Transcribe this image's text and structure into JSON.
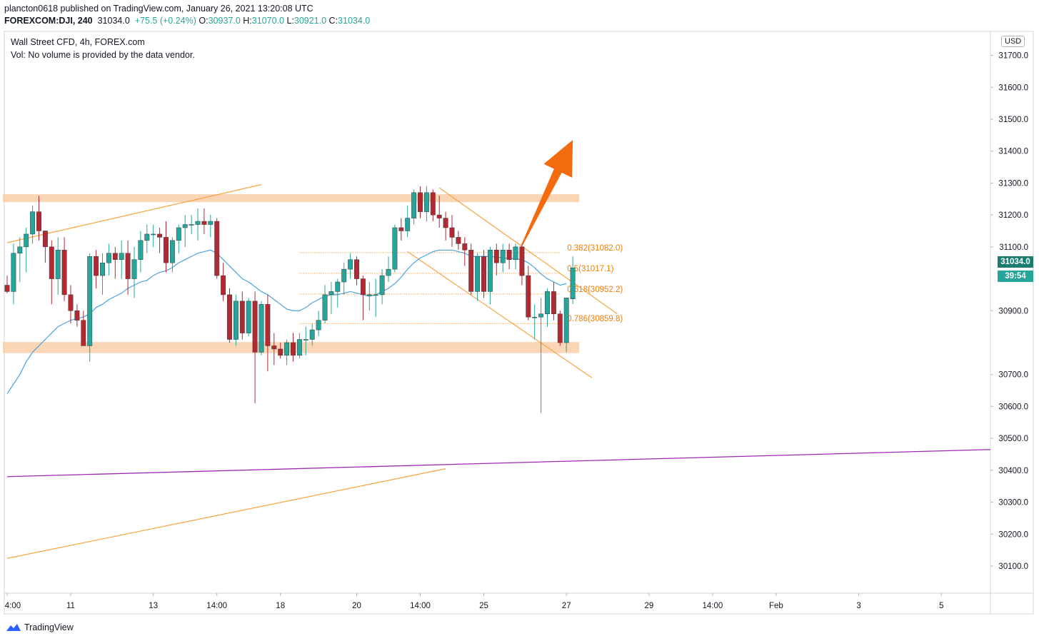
{
  "header": {
    "line1": "plancton0618 published on TradingView.com, January 26, 2021 13:20:08 UTC",
    "symbol": "FOREXCOM:DJI, 240",
    "last": "31034.0",
    "change": "+75.5 (+0.24%)",
    "o_key": "O:",
    "o_val": "30937.0",
    "h_key": "H:",
    "h_val": "31070.0",
    "l_key": "L:",
    "l_val": "30921.0",
    "c_key": "C:",
    "c_val": "31034.0"
  },
  "overlay": {
    "title": "Wall Street CFD, 4h, FOREX.com",
    "volume_note": "Vol: No volume is provided by the data vendor."
  },
  "price_axis": {
    "currency_badge": "USD",
    "current_price_label": "31034.0",
    "countdown_label": "39:54"
  },
  "footer": {
    "brand": "TradingView"
  },
  "colors": {
    "up": "#26a69a",
    "down": "#b22833",
    "ma": "#4aa3df",
    "fib": "#f57c00",
    "trend": "#f7a440",
    "zone": "#f9c89d",
    "purple": "#9c27b0",
    "arrow": "#f26b0f"
  },
  "chart_data": {
    "type": "candlestick",
    "title": "Wall Street CFD, 4h, FOREX.com",
    "ylim": [
      30015,
      31775
    ],
    "y_ticks": [
      30100,
      30200,
      30300,
      30400,
      30500,
      30600,
      30700,
      30800,
      30900,
      31000,
      31100,
      31200,
      31300,
      31400,
      31500,
      31600,
      31700
    ],
    "y_tick_labels": [
      "30100.0",
      "30200.0",
      "30300.0",
      "30400.0",
      "30500.0",
      "30600.0",
      "30700.0",
      "",
      "30900.0",
      "",
      "31100.0",
      "31200.0",
      "31300.0",
      "31400.0",
      "31500.0",
      "31600.0",
      "31700.0"
    ],
    "x_tick_labels": [
      {
        "i": 0,
        "label": "4:00"
      },
      {
        "i": 10,
        "label": "11"
      },
      {
        "i": 23,
        "label": "13"
      },
      {
        "i": 33,
        "label": "14:00"
      },
      {
        "i": 43,
        "label": "18"
      },
      {
        "i": 55,
        "label": "20"
      },
      {
        "i": 65,
        "label": "14:00"
      },
      {
        "i": 75,
        "label": "25"
      },
      {
        "i": 88,
        "label": "27"
      },
      {
        "i": 101,
        "label": "29"
      },
      {
        "i": 111,
        "label": "14:00"
      },
      {
        "i": 121,
        "label": "Feb"
      },
      {
        "i": 134,
        "label": "3"
      },
      {
        "i": 147,
        "label": "5"
      }
    ],
    "candles": [
      [
        30980,
        31010,
        30955,
        30960
      ],
      [
        30960,
        31110,
        30920,
        31080
      ],
      [
        31080,
        31130,
        30990,
        31100
      ],
      [
        31100,
        31160,
        31020,
        31140
      ],
      [
        31140,
        31230,
        31110,
        31210
      ],
      [
        31210,
        31260,
        31120,
        31150
      ],
      [
        31150,
        31150,
        31050,
        31100
      ],
      [
        31100,
        31120,
        30920,
        31000
      ],
      [
        31000,
        31130,
        30950,
        31090
      ],
      [
        31090,
        31130,
        30930,
        30950
      ],
      [
        30950,
        30980,
        30860,
        30900
      ],
      [
        30900,
        30920,
        30850,
        30870
      ],
      [
        30870,
        30900,
        30790,
        30790
      ],
      [
        30790,
        31080,
        30740,
        31070
      ],
      [
        31070,
        31090,
        30970,
        31010
      ],
      [
        31010,
        31080,
        30950,
        31050
      ],
      [
        31050,
        31110,
        31010,
        31080
      ],
      [
        31080,
        31100,
        31000,
        31060
      ],
      [
        31060,
        31120,
        31000,
        31080
      ],
      [
        31080,
        31120,
        30950,
        31000
      ],
      [
        31000,
        31100,
        30940,
        31060
      ],
      [
        31060,
        31150,
        31020,
        31120
      ],
      [
        31120,
        31170,
        31080,
        31140
      ],
      [
        31140,
        31170,
        31100,
        31140
      ],
      [
        31140,
        31160,
        31080,
        31130
      ],
      [
        31130,
        31180,
        31020,
        31050
      ],
      [
        31050,
        31130,
        31020,
        31120
      ],
      [
        31120,
        31170,
        31080,
        31160
      ],
      [
        31160,
        31200,
        31100,
        31170
      ],
      [
        31170,
        31200,
        31140,
        31170
      ],
      [
        31170,
        31220,
        31120,
        31180
      ],
      [
        31180,
        31220,
        31140,
        31170
      ],
      [
        31170,
        31200,
        31130,
        31180
      ],
      [
        31180,
        31190,
        31000,
        31010
      ],
      [
        31010,
        31050,
        30930,
        30950
      ],
      [
        30950,
        30970,
        30800,
        30810
      ],
      [
        30810,
        30950,
        30790,
        30930
      ],
      [
        30930,
        30960,
        30810,
        30830
      ],
      [
        30830,
        30940,
        30820,
        30930
      ],
      [
        30930,
        30960,
        30610,
        30770
      ],
      [
        30770,
        30930,
        30760,
        30920
      ],
      [
        30920,
        30950,
        30710,
        30790
      ],
      [
        30790,
        30830,
        30730,
        30780
      ],
      [
        30780,
        30800,
        30750,
        30760
      ],
      [
        30760,
        30810,
        30730,
        30800
      ],
      [
        30800,
        30830,
        30740,
        30760
      ],
      [
        30760,
        30830,
        30750,
        30810
      ],
      [
        30810,
        30850,
        30760,
        30810
      ],
      [
        30810,
        30860,
        30790,
        30840
      ],
      [
        30840,
        30900,
        30820,
        30870
      ],
      [
        30870,
        30980,
        30860,
        30950
      ],
      [
        30950,
        30990,
        30890,
        30960
      ],
      [
        30960,
        31000,
        30910,
        30990
      ],
      [
        30990,
        31050,
        30950,
        31030
      ],
      [
        31030,
        31080,
        31000,
        31060
      ],
      [
        31060,
        31070,
        30980,
        31000
      ],
      [
        31000,
        31010,
        30870,
        30950
      ],
      [
        30950,
        30990,
        30900,
        30950
      ],
      [
        30950,
        31000,
        30880,
        30950
      ],
      [
        30950,
        31030,
        30920,
        31010
      ],
      [
        31010,
        31070,
        30990,
        31030
      ],
      [
        31030,
        31170,
        31020,
        31160
      ],
      [
        31160,
        31190,
        31120,
        31150
      ],
      [
        31150,
        31230,
        31130,
        31190
      ],
      [
        31190,
        31280,
        31170,
        31270
      ],
      [
        31270,
        31290,
        31190,
        31210
      ],
      [
        31210,
        31290,
        31180,
        31270
      ],
      [
        31270,
        31280,
        31180,
        31200
      ],
      [
        31200,
        31260,
        31160,
        31190
      ],
      [
        31190,
        31210,
        31120,
        31160
      ],
      [
        31160,
        31200,
        31100,
        31130
      ],
      [
        31130,
        31150,
        31090,
        31110
      ],
      [
        31110,
        31130,
        31040,
        31090
      ],
      [
        31090,
        31110,
        30950,
        30960
      ],
      [
        30960,
        31080,
        30930,
        31070
      ],
      [
        31070,
        31090,
        30940,
        30960
      ],
      [
        30960,
        31100,
        30920,
        31090
      ],
      [
        31090,
        31110,
        31010,
        31050
      ],
      [
        31050,
        31110,
        31020,
        31090
      ],
      [
        31090,
        31110,
        31030,
        31060
      ],
      [
        31060,
        31110,
        31030,
        31100
      ],
      [
        31100,
        31110,
        30980,
        31010
      ],
      [
        31010,
        31040,
        30870,
        30880
      ],
      [
        30880,
        30920,
        30810,
        30880
      ],
      [
        30880,
        30940,
        30580,
        30890
      ],
      [
        30890,
        30970,
        30850,
        30960
      ],
      [
        30960,
        30990,
        30870,
        30890
      ],
      [
        30890,
        30900,
        30790,
        30800
      ],
      [
        30800,
        30940,
        30770,
        30940
      ],
      [
        30937,
        31070,
        30921,
        31034
      ]
    ],
    "moving_average": [
      30640,
      30670,
      30700,
      30740,
      30770,
      30790,
      30810,
      30830,
      30850,
      30860,
      30870,
      30875,
      30880,
      30890,
      30910,
      30920,
      30935,
      30945,
      30955,
      30970,
      30980,
      30990,
      30995,
      31010,
      31020,
      31025,
      31035,
      31050,
      31060,
      31070,
      31080,
      31085,
      31090,
      31080,
      31060,
      31040,
      31020,
      31000,
      30990,
      30975,
      30960,
      30950,
      30935,
      30920,
      30905,
      30900,
      30900,
      30910,
      30925,
      30935,
      30945,
      30950,
      30950,
      30955,
      30960,
      30955,
      30950,
      30945,
      30950,
      30960,
      30970,
      30985,
      31005,
      31030,
      31050,
      31065,
      31075,
      31085,
      31090,
      31090,
      31090,
      31085,
      31080,
      31070,
      31070,
      31070,
      31070,
      31068,
      31066,
      31063,
      31063,
      31060,
      31050,
      31035,
      31015,
      31000,
      30990,
      30980,
      30985
    ],
    "fib_levels": [
      {
        "ratio": "0.382",
        "price": 31082.0,
        "label": "0.382(31082.0)"
      },
      {
        "ratio": "0.5",
        "price": 31017.1,
        "label": "0.5(31017.1)"
      },
      {
        "ratio": "0.618",
        "price": 30952.2,
        "label": "0.618(30952.2)"
      },
      {
        "ratio": "0.786",
        "price": 30859.8,
        "label": "0.786(30859.8)"
      }
    ],
    "zones": [
      {
        "from_i": 0,
        "to_i": 90,
        "low": 31240,
        "high": 31265
      },
      {
        "from_i": 0,
        "to_i": 90,
        "low": 30767,
        "high": 30802
      }
    ],
    "lines": [
      {
        "name": "upper-trend",
        "p1": [
          0,
          31113
        ],
        "p2": [
          40,
          31295
        ]
      },
      {
        "name": "lower-trend",
        "p1": [
          0,
          30124
        ],
        "p2": [
          69,
          30405
        ]
      },
      {
        "name": "channel-top",
        "p1": [
          68,
          31285
        ],
        "p2": [
          96,
          30890
        ]
      },
      {
        "name": "channel-bottom",
        "p1": [
          63,
          31085
        ],
        "p2": [
          92,
          30690
        ]
      },
      {
        "name": "support-line",
        "p1": [
          0,
          30380
        ],
        "p2": [
          163,
          30465
        ]
      }
    ],
    "arrow": {
      "from": [
        81,
        31105
      ],
      "to": [
        89,
        31435
      ]
    }
  }
}
